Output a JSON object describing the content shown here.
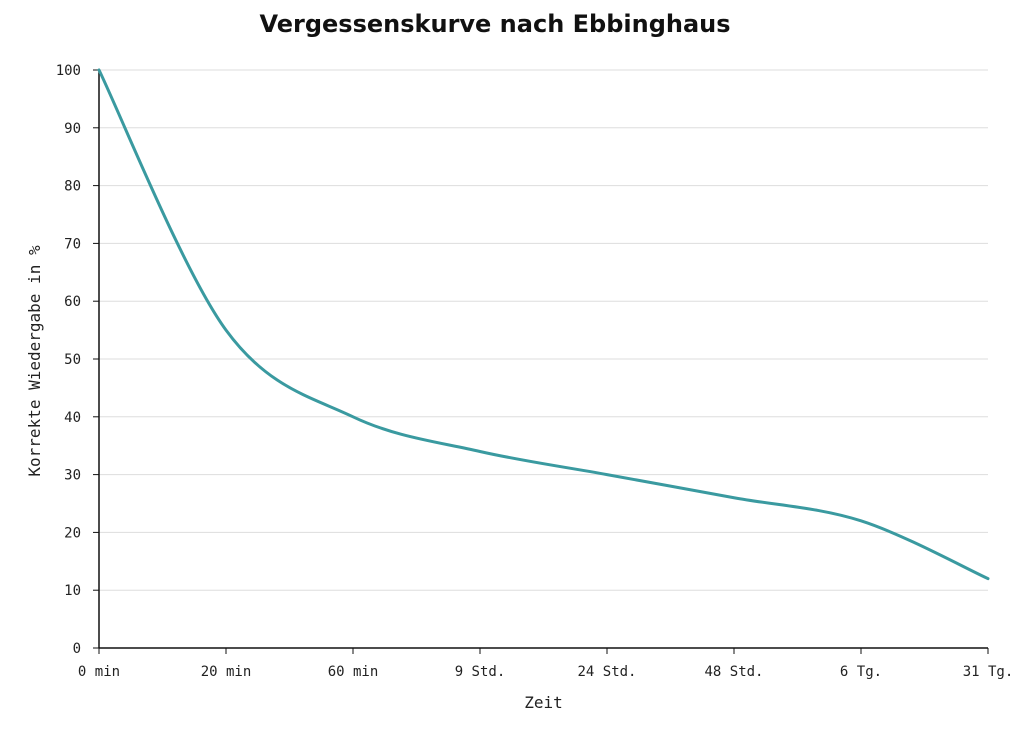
{
  "chart_data": {
    "type": "line",
    "title": "Vergessenskurve nach Ebbinghaus",
    "xlabel": "Zeit",
    "ylabel": "Korrekte Wiedergabe in %",
    "categories": [
      "0 min",
      "20 min",
      "60 min",
      "9 Std.",
      "24 Std.",
      "48 Std.",
      "6 Tg.",
      "31 Tg."
    ],
    "series": [
      {
        "values": [
          100,
          55,
          40,
          34,
          30,
          26,
          22,
          12
        ]
      }
    ],
    "y_ticks": [
      "0",
      "10",
      "20",
      "30",
      "40",
      "50",
      "60",
      "70",
      "80",
      "90",
      "100"
    ],
    "ylim": [
      0,
      100
    ],
    "grid": "horizontal",
    "line_color": "#3a9aa0",
    "grid_color": "#dddddd",
    "axis_color": "#111111"
  }
}
